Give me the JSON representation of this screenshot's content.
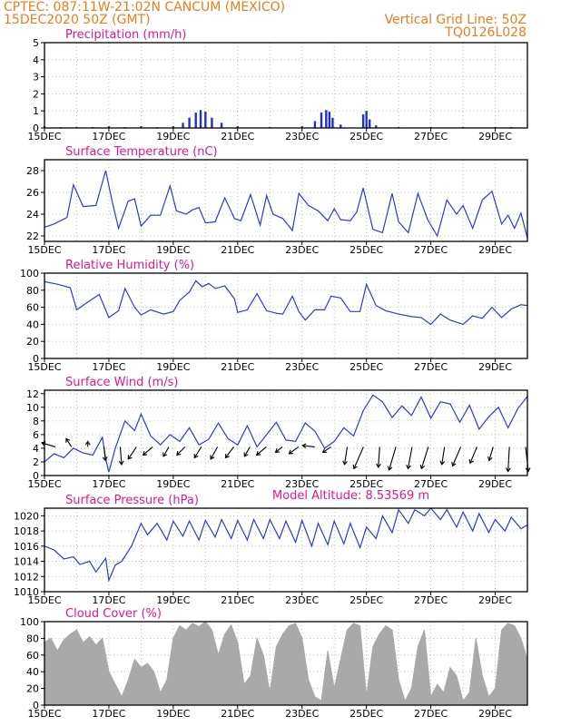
{
  "header": {
    "source_line": "CPTEC:  087:11W-21:02N  CANCUM (MEXICO)",
    "date_line": "15DEC2020 50Z (GMT)",
    "grid_note": "Vertical Grid Line: 50Z",
    "code": "TQ0126L028"
  },
  "model_altitude": "Model Altitude: 8.53569 m",
  "x_tick_labels": [
    "15DEC",
    "17DEC",
    "19DEC",
    "21DEC",
    "23DEC",
    "25DEC",
    "27DEC",
    "29DEC"
  ],
  "colors": {
    "line": "#2a3bd6",
    "bars": "#1f2fd0",
    "cloud": "#a9a9a9",
    "title": "#e0188c",
    "header": "#e87d1e"
  },
  "chart_data": [
    {
      "type": "bar",
      "title": "Precipitation (mm/h)",
      "ylim": [
        0,
        5
      ],
      "yticks": [
        0,
        1,
        2,
        3,
        4,
        5
      ],
      "x_range_days": [
        15,
        30
      ],
      "x": [
        15.0,
        15.5,
        16.0,
        16.5,
        17.0,
        17.5,
        18.0,
        18.5,
        19.0,
        19.3,
        19.5,
        19.7,
        19.85,
        20.0,
        20.2,
        20.5,
        21.0,
        22.0,
        23.0,
        23.4,
        23.6,
        23.75,
        23.85,
        23.95,
        24.2,
        24.9,
        25.0,
        25.1,
        25.3,
        26.0,
        27.0,
        28.0,
        29.0,
        29.5
      ],
      "values": [
        0.1,
        0.05,
        0.05,
        0.05,
        0.1,
        0.05,
        0.1,
        0.05,
        0.1,
        0.3,
        0.6,
        0.9,
        1.05,
        0.95,
        0.6,
        0.3,
        0.1,
        0.05,
        0.1,
        0.4,
        0.9,
        1.05,
        0.95,
        0.6,
        0.2,
        0.8,
        1.0,
        0.5,
        0.15,
        0.05,
        0.05,
        0.05,
        0.05,
        0.05
      ]
    },
    {
      "type": "line",
      "title": "Surface Temperature (nC)",
      "ylim": [
        21.5,
        29
      ],
      "yticks": [
        22,
        24,
        26,
        28
      ],
      "x_range_days": [
        15,
        30
      ],
      "x": [
        15.0,
        15.3,
        15.7,
        15.9,
        16.2,
        16.6,
        16.9,
        17.1,
        17.3,
        17.6,
        17.8,
        18.0,
        18.3,
        18.6,
        18.9,
        19.1,
        19.4,
        19.6,
        19.8,
        20.0,
        20.3,
        20.6,
        20.9,
        21.1,
        21.4,
        21.7,
        21.9,
        22.1,
        22.4,
        22.7,
        22.9,
        23.2,
        23.5,
        23.8,
        24.0,
        24.2,
        24.5,
        24.7,
        24.9,
        25.2,
        25.5,
        25.8,
        26.0,
        26.3,
        26.6,
        26.9,
        27.2,
        27.5,
        27.8,
        28.0,
        28.3,
        28.6,
        28.9,
        29.2,
        29.4,
        29.6,
        29.8,
        30.0
      ],
      "values": [
        22.8,
        23.1,
        23.7,
        26.7,
        24.7,
        24.8,
        28.0,
        25.2,
        22.7,
        25.2,
        25.4,
        22.9,
        23.9,
        23.9,
        26.6,
        24.3,
        24.0,
        24.4,
        24.6,
        23.2,
        23.3,
        25.5,
        23.6,
        23.4,
        25.8,
        23.0,
        25.7,
        24.0,
        23.6,
        22.5,
        25.9,
        24.8,
        24.3,
        23.4,
        24.5,
        23.5,
        23.4,
        24.2,
        26.4,
        22.6,
        22.3,
        25.9,
        23.3,
        22.3,
        25.9,
        23.5,
        22.0,
        25.3,
        24.0,
        24.8,
        22.7,
        25.3,
        26.1,
        23.1,
        23.9,
        22.7,
        24.1,
        21.8
      ]
    },
    {
      "type": "line",
      "title": "Relative Humidity (%)",
      "ylim": [
        0,
        100
      ],
      "yticks": [
        0,
        20,
        40,
        60,
        80,
        100
      ],
      "x_range_days": [
        15,
        30
      ],
      "x": [
        15.0,
        15.4,
        15.8,
        16.0,
        16.3,
        16.7,
        17.0,
        17.3,
        17.5,
        17.8,
        18.0,
        18.3,
        18.7,
        19.0,
        19.2,
        19.5,
        19.7,
        19.9,
        20.1,
        20.3,
        20.6,
        20.9,
        21.0,
        21.3,
        21.6,
        21.9,
        22.2,
        22.4,
        22.7,
        22.9,
        23.1,
        23.4,
        23.7,
        23.9,
        24.2,
        24.5,
        24.8,
        25.0,
        25.3,
        25.6,
        26.0,
        26.4,
        26.7,
        27.0,
        27.3,
        27.6,
        28.0,
        28.3,
        28.6,
        28.9,
        29.2,
        29.5,
        29.8,
        30.0
      ],
      "values": [
        90,
        87,
        83,
        57,
        65,
        75,
        48,
        56,
        82,
        60,
        51,
        57,
        52,
        55,
        68,
        78,
        91,
        84,
        88,
        82,
        85,
        70,
        54,
        57,
        76,
        56,
        53,
        52,
        73,
        55,
        45,
        57,
        57,
        73,
        71,
        55,
        55,
        87,
        62,
        56,
        52,
        49,
        48,
        40,
        52,
        45,
        40,
        50,
        47,
        60,
        48,
        58,
        63,
        62
      ]
    },
    {
      "type": "line",
      "title": "Surface Wind (m/s)",
      "ylim": [
        0,
        12.5
      ],
      "yticks": [
        0,
        2,
        4,
        6,
        8,
        10,
        12
      ],
      "x_range_days": [
        15,
        30
      ],
      "x": [
        15.0,
        15.3,
        15.6,
        15.9,
        16.2,
        16.5,
        16.8,
        16.9,
        17.0,
        17.2,
        17.5,
        17.8,
        18.0,
        18.3,
        18.6,
        18.9,
        19.2,
        19.5,
        19.8,
        20.1,
        20.4,
        20.7,
        21.0,
        21.3,
        21.6,
        21.9,
        22.2,
        22.5,
        22.8,
        23.1,
        23.4,
        23.7,
        24.0,
        24.3,
        24.6,
        24.9,
        25.2,
        25.5,
        25.8,
        26.1,
        26.4,
        26.7,
        27.0,
        27.3,
        27.6,
        27.9,
        28.2,
        28.5,
        28.8,
        29.1,
        29.4,
        29.7,
        30.0
      ],
      "values": [
        2.0,
        3.2,
        2.6,
        4.0,
        3.3,
        3.0,
        5.6,
        2.5,
        0.5,
        4.0,
        8.0,
        6.6,
        9.0,
        5.8,
        4.5,
        6.0,
        5.0,
        7.0,
        4.5,
        5.3,
        7.7,
        5.4,
        4.5,
        7.3,
        4.2,
        6.0,
        7.8,
        5.2,
        5.0,
        7.7,
        6.5,
        4.0,
        5.0,
        7.0,
        5.8,
        9.5,
        11.8,
        10.8,
        8.5,
        10.2,
        8.8,
        11.5,
        8.4,
        10.8,
        10.5,
        7.8,
        10.3,
        6.8,
        8.6,
        10.0,
        7.0,
        9.8,
        11.6
      ],
      "arrows_uv": [
        [
          -1.0,
          0.3
        ],
        [
          -0.4,
          0.6
        ],
        [
          0.0,
          0.4
        ],
        [
          0.1,
          -1.0
        ],
        [
          0.1,
          -1.3
        ],
        [
          -0.6,
          -0.9
        ],
        [
          -0.7,
          -0.6
        ],
        [
          -0.4,
          -0.7
        ],
        [
          -0.6,
          -0.6
        ],
        [
          -0.5,
          -0.8
        ],
        [
          -0.5,
          -0.9
        ],
        [
          -0.6,
          -0.8
        ],
        [
          -0.4,
          -0.7
        ],
        [
          -0.7,
          -0.6
        ],
        [
          -0.5,
          -0.4
        ],
        [
          -0.7,
          -0.5
        ],
        [
          -0.9,
          0.1
        ],
        [
          -0.6,
          -0.4
        ],
        [
          -0.2,
          -1.3
        ],
        [
          -0.7,
          -1.6
        ],
        [
          -0.1,
          -1.5
        ],
        [
          -0.5,
          -1.7
        ],
        [
          -0.3,
          -1.6
        ],
        [
          -0.5,
          -1.6
        ],
        [
          -0.2,
          -1.3
        ],
        [
          -0.6,
          -1.4
        ],
        [
          -0.5,
          -1.2
        ],
        [
          -0.3,
          -1.0
        ],
        [
          -0.1,
          -1.8
        ],
        [
          0.2,
          -1.8
        ]
      ]
    },
    {
      "type": "line",
      "title": "Surface Pressure (hPa)",
      "ylim": [
        1010,
        1021
      ],
      "yticks": [
        1010,
        1012,
        1014,
        1016,
        1018,
        1020
      ],
      "x_range_days": [
        15,
        30
      ],
      "x": [
        15.0,
        15.3,
        15.6,
        15.9,
        16.1,
        16.4,
        16.6,
        16.9,
        17.0,
        17.2,
        17.4,
        17.7,
        18.0,
        18.2,
        18.5,
        18.8,
        19.0,
        19.3,
        19.5,
        19.8,
        20.0,
        20.3,
        20.5,
        20.8,
        21.0,
        21.3,
        21.5,
        21.8,
        22.0,
        22.3,
        22.5,
        22.8,
        23.0,
        23.3,
        23.5,
        23.8,
        24.0,
        24.3,
        24.5,
        24.8,
        25.0,
        25.3,
        25.5,
        25.8,
        26.0,
        26.3,
        26.5,
        26.8,
        27.0,
        27.3,
        27.5,
        27.8,
        28.0,
        28.3,
        28.5,
        28.8,
        29.0,
        29.3,
        29.5,
        29.8,
        30.0
      ],
      "values": [
        1016.0,
        1015.5,
        1014.3,
        1014.6,
        1013.6,
        1014.0,
        1012.6,
        1014.4,
        1011.5,
        1013.5,
        1014.0,
        1016.0,
        1019.0,
        1017.5,
        1019.0,
        1016.8,
        1019.3,
        1017.3,
        1019.3,
        1016.8,
        1019.4,
        1017.2,
        1019.5,
        1017.0,
        1019.4,
        1016.8,
        1019.5,
        1017.0,
        1019.5,
        1017.0,
        1019.3,
        1016.5,
        1019.4,
        1016.0,
        1019.0,
        1016.2,
        1019.3,
        1016.3,
        1019.0,
        1015.8,
        1018.5,
        1017.0,
        1020.0,
        1017.8,
        1020.8,
        1019.0,
        1020.8,
        1020.0,
        1021.0,
        1019.5,
        1020.8,
        1018.5,
        1020.5,
        1018.0,
        1020.3,
        1017.8,
        1019.5,
        1018.0,
        1019.8,
        1018.3,
        1018.8
      ]
    },
    {
      "type": "area",
      "title": "Cloud Cover (%)",
      "ylim": [
        0,
        100
      ],
      "yticks": [
        0,
        20,
        40,
        60,
        80,
        100
      ],
      "x_range_days": [
        15,
        30
      ],
      "x": [
        15.0,
        15.2,
        15.4,
        15.6,
        15.8,
        16.0,
        16.2,
        16.4,
        16.6,
        16.8,
        17.0,
        17.2,
        17.4,
        17.6,
        17.8,
        18.0,
        18.2,
        18.4,
        18.6,
        18.8,
        19.0,
        19.2,
        19.4,
        19.6,
        19.8,
        20.0,
        20.2,
        20.4,
        20.6,
        20.8,
        21.0,
        21.2,
        21.4,
        21.6,
        21.8,
        22.0,
        22.2,
        22.4,
        22.6,
        22.8,
        23.0,
        23.2,
        23.4,
        23.6,
        23.8,
        24.0,
        24.2,
        24.4,
        24.6,
        24.8,
        25.0,
        25.2,
        25.4,
        25.6,
        25.8,
        26.0,
        26.2,
        26.4,
        26.6,
        26.8,
        27.0,
        27.2,
        27.4,
        27.6,
        27.8,
        28.0,
        28.2,
        28.4,
        28.6,
        28.8,
        29.0,
        29.2,
        29.4,
        29.6,
        29.8,
        30.0
      ],
      "values": [
        75,
        80,
        65,
        78,
        85,
        90,
        75,
        82,
        72,
        80,
        40,
        25,
        10,
        30,
        55,
        45,
        50,
        40,
        15,
        30,
        80,
        95,
        90,
        98,
        94,
        100,
        90,
        60,
        85,
        96,
        75,
        25,
        35,
        80,
        60,
        15,
        70,
        85,
        95,
        98,
        80,
        30,
        10,
        5,
        65,
        20,
        55,
        90,
        98,
        95,
        10,
        70,
        85,
        95,
        90,
        30,
        5,
        20,
        70,
        90,
        10,
        25,
        15,
        45,
        35,
        5,
        15,
        80,
        35,
        10,
        20,
        90,
        98,
        95,
        80,
        55
      ]
    }
  ]
}
